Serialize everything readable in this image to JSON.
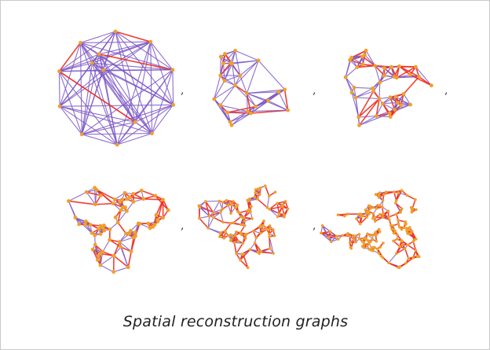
{
  "caption": "Spatial reconstruction graphs",
  "separator": ",",
  "colors": {
    "edge": "#7a56c4",
    "highlight_edge": "#f02a1e",
    "node": "#f0a028"
  },
  "graph_panels": [
    {
      "name": "graph-1",
      "order": 1
    },
    {
      "name": "graph-2",
      "order": 2
    },
    {
      "name": "graph-3",
      "order": 3
    },
    {
      "name": "graph-4",
      "order": 4
    },
    {
      "name": "graph-5",
      "order": 5
    },
    {
      "name": "graph-6",
      "order": 6
    }
  ]
}
